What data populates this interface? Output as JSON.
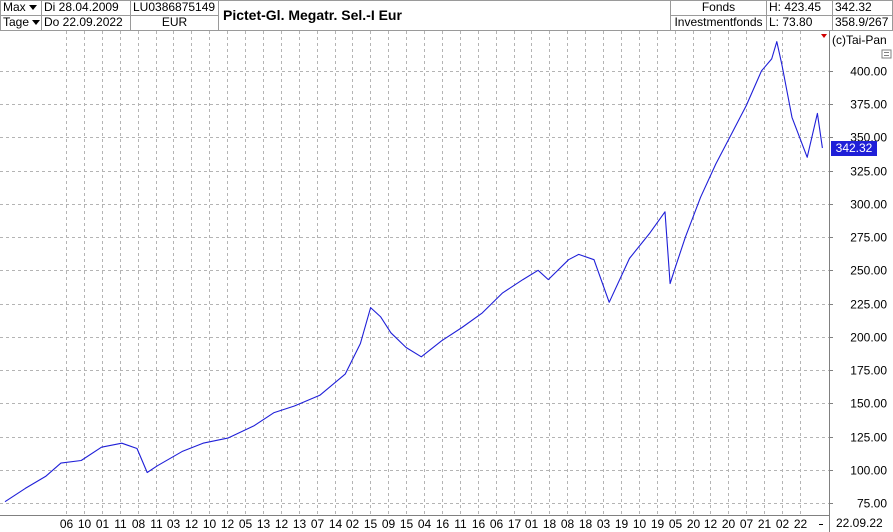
{
  "header": {
    "range_select": "Max",
    "interval_select": "Tage",
    "date_from": "Di 28.04.2009",
    "date_to": "Do 22.09.2022",
    "isin": "LU0386875149",
    "currency": "EUR",
    "title": "Pictet-Gl. Megatr. Sel.-I Eur",
    "type_line1": "Fonds",
    "type_line2": "Investmentfonds",
    "high": "H: 423.45",
    "low": "L: 73.80",
    "last": "342.32",
    "range": "358.9/267"
  },
  "copyright": "(c)Tai-Pan",
  "end_date": "22.09.22",
  "colors": {
    "line": "#1f1fd8",
    "grid": "#b4b4b4",
    "tag": "#1f1fd8"
  },
  "chart_data": {
    "type": "line",
    "title": "Pictet-Gl. Megatr. Sel.-I Eur",
    "xlabel": "",
    "ylabel": "",
    "ylim": [
      66,
      430
    ],
    "yticks": [
      75,
      100,
      125,
      150,
      175,
      200,
      225,
      250,
      275,
      300,
      325,
      350,
      375,
      400
    ],
    "ytick_labels": [
      "75.00",
      "100.00",
      "125.00",
      "150.00",
      "175.00",
      "200.00",
      "225.00",
      "250.00",
      "275.00",
      "300.00",
      "325.00",
      "350.00",
      "375.00",
      "400.00"
    ],
    "xticks": [
      "06",
      "10",
      "01",
      "11",
      "08",
      "11",
      "03",
      "12",
      "10",
      "12",
      "05",
      "13",
      "12",
      "13",
      "07",
      "14",
      "02",
      "15",
      "09",
      "15",
      "04",
      "16",
      "11",
      "16",
      "06",
      "17",
      "01",
      "18",
      "08",
      "18",
      "03",
      "19",
      "10",
      "19",
      "05",
      "20",
      "12",
      "20",
      "07",
      "21",
      "02",
      "22"
    ],
    "last_value": "342.32",
    "grid": true,
    "series": [
      {
        "x": [
          "2009-04",
          "2009-08",
          "2009-12",
          "2010-03",
          "2010-07",
          "2010-11",
          "2011-03",
          "2011-06",
          "2011-08",
          "2011-10",
          "2012-03",
          "2012-07",
          "2012-12",
          "2013-05",
          "2013-09",
          "2014-01",
          "2014-06",
          "2014-11",
          "2015-02",
          "2015-04",
          "2015-06",
          "2015-08",
          "2015-11",
          "2016-02",
          "2016-06",
          "2016-10",
          "2017-02",
          "2017-06",
          "2017-10",
          "2018-01",
          "2018-03",
          "2018-07",
          "2018-09",
          "2018-12",
          "2019-03",
          "2019-07",
          "2019-11",
          "2020-02",
          "2020-03",
          "2020-04",
          "2020-06",
          "2020-09",
          "2020-12",
          "2021-03",
          "2021-06",
          "2021-09",
          "2021-11",
          "2021-12",
          "2022-01",
          "2022-03",
          "2022-06",
          "2022-08",
          "2022-09"
        ],
        "values": [
          76,
          86,
          95,
          105,
          107,
          117,
          120,
          116,
          98,
          103,
          114,
          120,
          124,
          133,
          143,
          148,
          156,
          172,
          195,
          222,
          215,
          203,
          192,
          185,
          197,
          207,
          218,
          233,
          243,
          250,
          243,
          258,
          262,
          258,
          226,
          259,
          278,
          294,
          240,
          252,
          275,
          305,
          330,
          352,
          374,
          400,
          409,
          422,
          405,
          365,
          335,
          368,
          342
        ]
      }
    ]
  }
}
